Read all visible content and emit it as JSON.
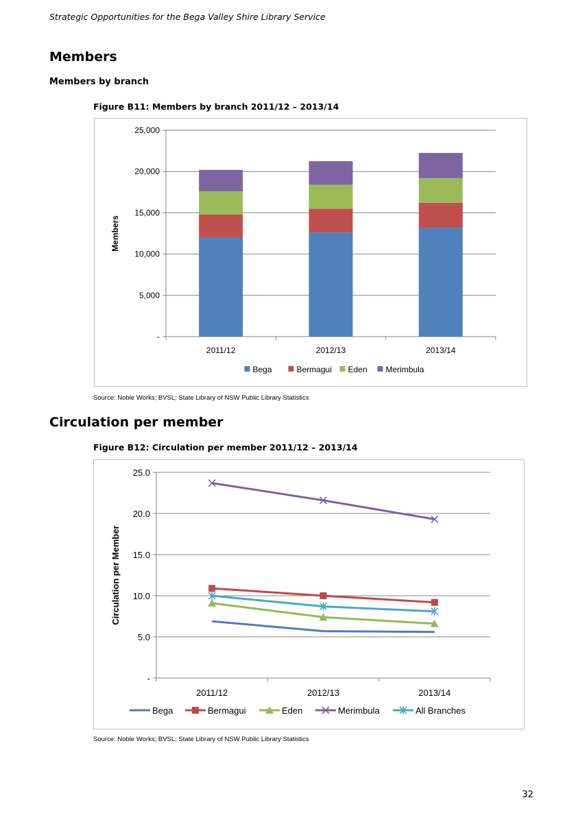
{
  "page": {
    "header": "Strategic Opportunities for the Bega Valley Shire Library Service",
    "section_members": "Members",
    "subsection_members_by_branch": "Members by branch",
    "figure_b11_caption": "Figure B11: Members by branch  2011/12 – 2013/14",
    "figure_b11_source": "Source: Noble Works; BVSL; State Library of NSW Public Library Statistics",
    "section_circulation": "Circulation per member",
    "figure_b12_caption": "Figure B12: Circulation per member 2011/12 – 2013/14",
    "figure_b12_source": "Source: Noble Works; BVSL; State Library of NSW Public Library Statistics",
    "page_number": "32"
  },
  "chart_data": [
    {
      "type": "bar",
      "stacked": true,
      "categories": [
        "2011/12",
        "2012/13",
        "2013/14"
      ],
      "series": [
        {
          "name": "Bega",
          "color": "#4f81bd",
          "values": [
            12000,
            12600,
            13200
          ]
        },
        {
          "name": "Bermagui",
          "color": "#c0504d",
          "values": [
            2800,
            2900,
            3000
          ]
        },
        {
          "name": "Eden",
          "color": "#9bbb59",
          "values": [
            2800,
            2900,
            3000
          ]
        },
        {
          "name": "Merimbula",
          "color": "#8064a2",
          "values": [
            2600,
            2850,
            3050
          ]
        }
      ],
      "ylabel": "Members",
      "ylim": [
        0,
        25000
      ],
      "yticks": [
        0,
        5000,
        10000,
        15000,
        20000,
        25000
      ],
      "ytick_labels": [
        "-",
        "5,000",
        "10,000",
        "15,000",
        "20,000",
        "25,000"
      ],
      "grid": true,
      "legend": "bottom"
    },
    {
      "type": "line",
      "categories": [
        "2011/12",
        "2012/13",
        "2013/14"
      ],
      "series": [
        {
          "name": "Bega",
          "color": "#4a7ebb",
          "marker": "none",
          "values": [
            6.9,
            5.7,
            5.6
          ]
        },
        {
          "name": "Bermagui",
          "color": "#be4b48",
          "marker": "square",
          "values": [
            10.9,
            10.0,
            9.2
          ]
        },
        {
          "name": "Eden",
          "color": "#98b954",
          "marker": "triangle",
          "values": [
            9.1,
            7.4,
            6.6
          ]
        },
        {
          "name": "Merimbula",
          "color": "#7d60a0",
          "marker": "x",
          "values": [
            23.7,
            21.6,
            19.3
          ]
        },
        {
          "name": "All Branches",
          "color": "#46aac5",
          "marker": "star",
          "values": [
            10.0,
            8.7,
            8.1
          ]
        }
      ],
      "ylabel": "Circulation per Member",
      "ylim": [
        0,
        25
      ],
      "yticks": [
        0,
        5,
        10,
        15,
        20,
        25
      ],
      "ytick_labels": [
        "-",
        "5.0",
        "10.0",
        "15.0",
        "20.0",
        "25.0"
      ],
      "grid": true,
      "legend": "bottom"
    }
  ]
}
